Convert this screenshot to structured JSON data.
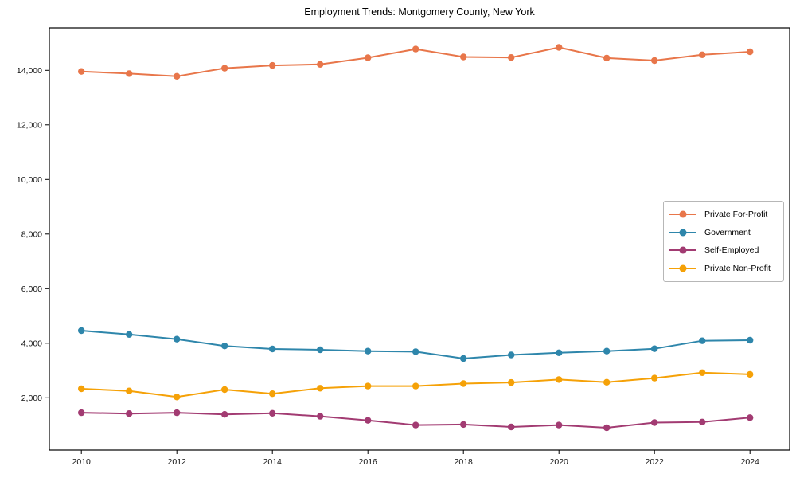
{
  "chart_data": {
    "type": "line",
    "title": "Employment Trends: Montgomery County, New York",
    "xlabel": "",
    "ylabel": "",
    "grid": false,
    "legend_position": "center right",
    "x": [
      2010,
      2011,
      2012,
      2013,
      2014,
      2015,
      2016,
      2017,
      2018,
      2019,
      2020,
      2021,
      2022,
      2023,
      2024
    ],
    "x_tick_labels": [
      "2010",
      "2012",
      "2014",
      "2016",
      "2018",
      "2020",
      "2022",
      "2024"
    ],
    "x_ticks": [
      2010,
      2012,
      2014,
      2016,
      2018,
      2020,
      2022,
      2024
    ],
    "y_ticks": [
      2000,
      4000,
      6000,
      8000,
      10000,
      12000,
      14000
    ],
    "y_tick_labels": [
      "2,000",
      "4,000",
      "6,000",
      "8,000",
      "10,000",
      "12,000",
      "14,000"
    ],
    "xlim": [
      2009.33,
      2024.83
    ],
    "ylim": [
      82,
      15556
    ],
    "series": [
      {
        "name": "Private For-Profit",
        "color": "#E8764A",
        "values": [
          13960,
          13880,
          13780,
          14080,
          14180,
          14220,
          14460,
          14780,
          14490,
          14470,
          14840,
          14450,
          14360,
          14570,
          14680
        ]
      },
      {
        "name": "Government",
        "color": "#2E86AB",
        "values": [
          4460,
          4320,
          4150,
          3900,
          3790,
          3760,
          3710,
          3690,
          3440,
          3570,
          3650,
          3710,
          3800,
          4090,
          4110
        ]
      },
      {
        "name": "Self-Employed",
        "color": "#A23B72",
        "values": [
          1450,
          1420,
          1450,
          1390,
          1430,
          1320,
          1170,
          1000,
          1020,
          930,
          1000,
          900,
          1090,
          1110,
          1270
        ]
      },
      {
        "name": "Private Non-Profit",
        "color": "#F5A107",
        "values": [
          2330,
          2250,
          2030,
          2300,
          2150,
          2350,
          2430,
          2430,
          2520,
          2560,
          2670,
          2570,
          2720,
          2920,
          2860
        ]
      }
    ]
  }
}
